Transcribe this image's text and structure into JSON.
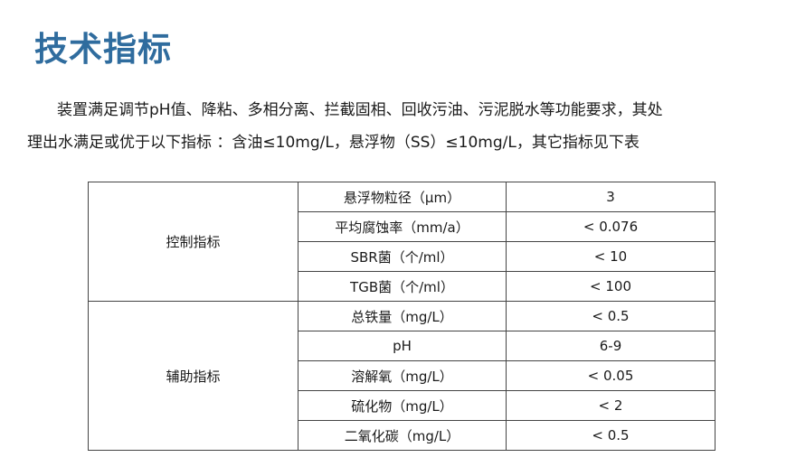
{
  "title": "技术指标",
  "paragraph": {
    "line1": "装置满足调节pH值、降粘、多相分离、拦截固相、回收污油、污泥脱水等功能要求，其处",
    "line2": "理出水满足或优于以下指标 ：含油≤10mg/L，悬浮物（SS）≤10mg/L，其它指标见下表"
  },
  "table": {
    "groups": [
      "控制指标",
      "辅助指标"
    ],
    "rows": [
      {
        "name": "悬浮物粒径（μm）",
        "value": "3"
      },
      {
        "name": "平均腐蚀率（mm/a）",
        "value": "< 0.076"
      },
      {
        "name": "SBR菌（个/ml）",
        "value": "< 10"
      },
      {
        "name": "TGB菌（个/ml）",
        "value": "< 100"
      },
      {
        "name": "总铁量（mg/L）",
        "value": "< 0.5"
      },
      {
        "name": "pH",
        "value": "6-9"
      },
      {
        "name": "溶解氧（mg/L）",
        "value": "< 0.05"
      },
      {
        "name": "硫化物（mg/L）",
        "value": "< 2"
      },
      {
        "name": "二氧化碳（mg/L）",
        "value": "< 0.5"
      }
    ]
  },
  "colors": {
    "title": "#2f6c9e"
  }
}
